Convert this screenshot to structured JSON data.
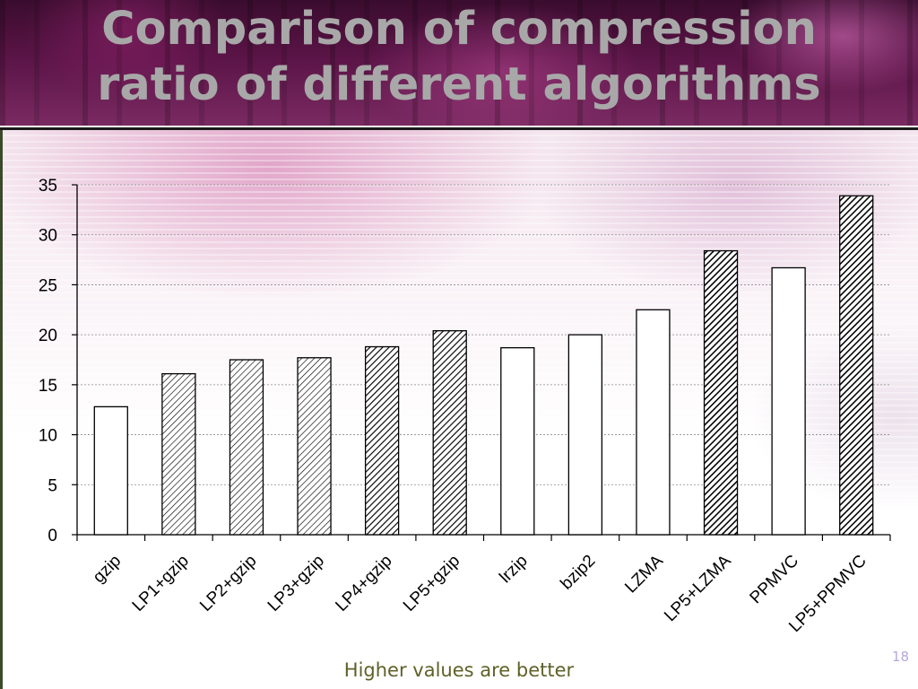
{
  "slide": {
    "title_line1": "Comparison of compression",
    "title_line2": "ratio of different algorithms",
    "footer_note": "Higher values are better",
    "page_number": "18"
  },
  "colors": {
    "title": "#a8a8a8",
    "footer_note": "#5f6128",
    "page_number": "#b6a7dc",
    "bar_stroke": "#000000",
    "bar_fill": "#ffffff"
  },
  "chart_data": {
    "type": "bar",
    "title": "",
    "xlabel": "",
    "ylabel": "",
    "ylim": [
      0,
      35
    ],
    "yticks": [
      0,
      5,
      10,
      15,
      20,
      25,
      30,
      35
    ],
    "grid": true,
    "legend": "none",
    "categories": [
      "gzip",
      "LP1+gzip",
      "LP2+gzip",
      "LP3+gzip",
      "LP4+gzip",
      "LP5+gzip",
      "lrzip",
      "bzip2",
      "LZMA",
      "LP5+LZMA",
      "PPMVC",
      "LP5+PPMVC"
    ],
    "values": [
      12.8,
      16.1,
      17.5,
      17.7,
      18.8,
      20.4,
      18.7,
      20.0,
      22.5,
      28.4,
      26.7,
      33.9
    ],
    "patterns": [
      "plain",
      "light-hatch",
      "light-hatch",
      "light-hatch",
      "dark-hatch",
      "dark-hatch",
      "plain",
      "plain",
      "plain",
      "dense-hatch",
      "plain",
      "dense-hatch"
    ]
  }
}
